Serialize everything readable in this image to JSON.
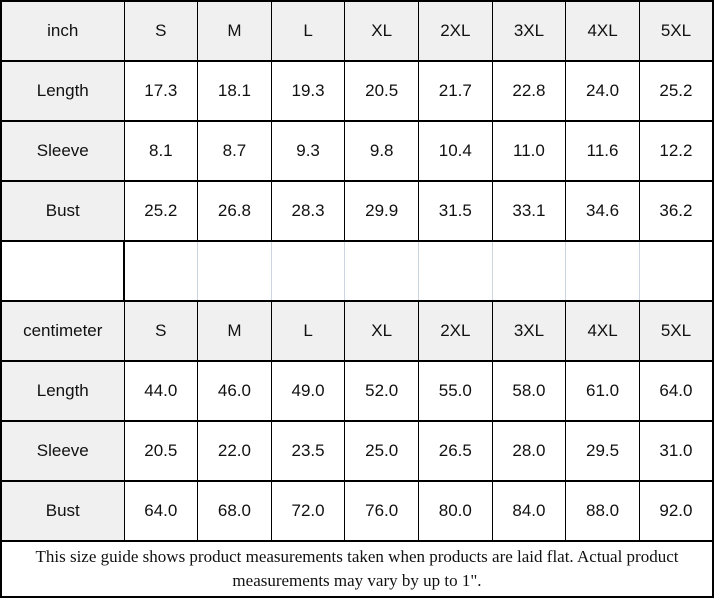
{
  "chart_data": [
    {
      "type": "table",
      "unit": "inch",
      "columns": [
        "inch",
        "S",
        "M",
        "L",
        "XL",
        "2XL",
        "3XL",
        "4XL",
        "5XL"
      ],
      "rows": [
        [
          "Length",
          "17.3",
          "18.1",
          "19.3",
          "20.5",
          "21.7",
          "22.8",
          "24.0",
          "25.2"
        ],
        [
          "Sleeve",
          "8.1",
          "8.7",
          "9.3",
          "9.8",
          "10.4",
          "11.0",
          "11.6",
          "12.2"
        ],
        [
          "Bust",
          "25.2",
          "26.8",
          "28.3",
          "29.9",
          "31.5",
          "33.1",
          "34.6",
          "36.2"
        ]
      ]
    },
    {
      "type": "table",
      "unit": "centimeter",
      "columns": [
        "centimeter",
        "S",
        "M",
        "L",
        "XL",
        "2XL",
        "3XL",
        "4XL",
        "5XL"
      ],
      "rows": [
        [
          "Length",
          "44.0",
          "46.0",
          "49.0",
          "52.0",
          "55.0",
          "58.0",
          "61.0",
          "64.0"
        ],
        [
          "Sleeve",
          "20.5",
          "22.0",
          "23.5",
          "25.0",
          "26.5",
          "28.0",
          "29.5",
          "31.0"
        ],
        [
          "Bust",
          "64.0",
          "68.0",
          "72.0",
          "76.0",
          "80.0",
          "84.0",
          "88.0",
          "92.0"
        ]
      ]
    }
  ],
  "footer": {
    "note": "This size guide shows product measurements taken when products are laid flat. Actual product measurements may vary by up to 1\"."
  },
  "colors": {
    "border": "#000000",
    "header_bg": "#f0f0f0",
    "cell_bg": "#ffffff",
    "spacer_divider": "#ccd4dd"
  }
}
